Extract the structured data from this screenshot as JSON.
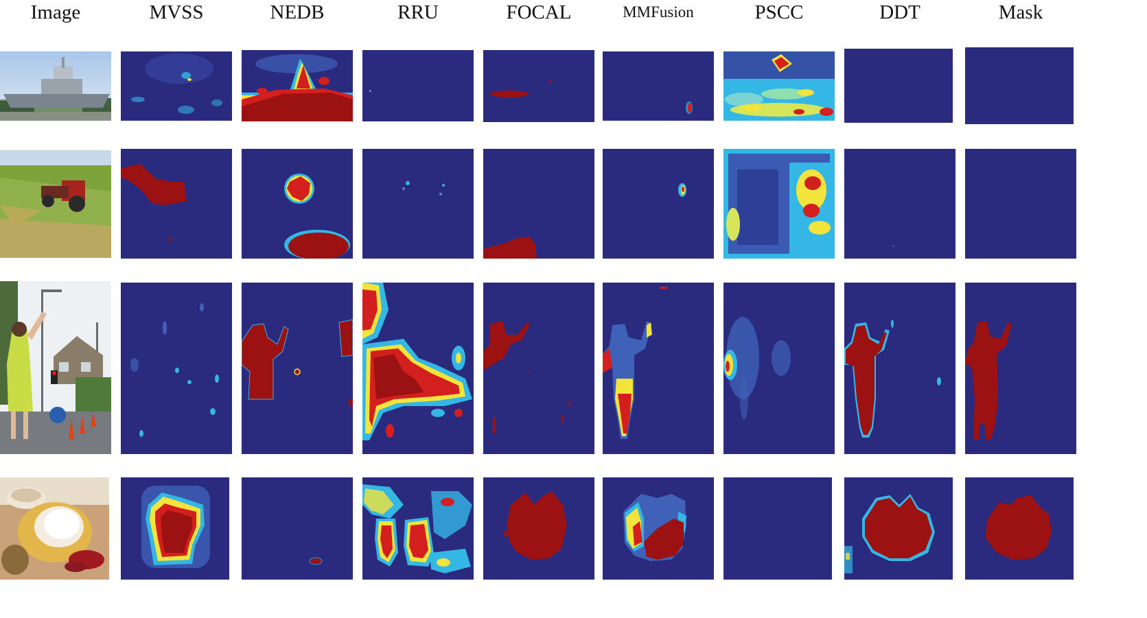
{
  "figure": {
    "columns": [
      "Image",
      "MVSS",
      "NEDB",
      "RRU",
      "FOCAL",
      "MMFusion",
      "PSCC",
      "DDT",
      "Mask"
    ],
    "rows": [
      {
        "subject": "aircraft-carrier",
        "cells": [
          "photo",
          "low-blobs",
          "red-bottom",
          "near-empty",
          "red-streak",
          "tiny-red-spot",
          "warm-noisy",
          "empty",
          "empty"
        ]
      },
      {
        "subject": "tractor-field",
        "cells": [
          "photo",
          "red-region-left",
          "red-blob-center-bottom",
          "tiny-spots",
          "red-bottom-left",
          "tiny-red-spot",
          "warm-right-side",
          "empty",
          "empty"
        ]
      },
      {
        "subject": "woman-street",
        "cells": [
          "photo",
          "faint-speckles",
          "red-silhouette",
          "red-scattered-large",
          "red-partial",
          "gradient-silhouette",
          "faint-left-blob",
          "red-silhouette-glow",
          "silhouette"
        ]
      },
      {
        "subject": "bread-cup",
        "cells": [
          "photo",
          "red-square-glow",
          "tiny-red-dot",
          "red-patches",
          "red-round-blob",
          "gradient-round-blob",
          "empty",
          "red-round-glow",
          "round-blob"
        ]
      }
    ]
  },
  "palette": {
    "background": "#2a2a7e",
    "hot": "#9c1212",
    "red": "#d41f1f",
    "yellow": "#f2e43a",
    "cyan": "#35b7e6",
    "light": "#5a86c9"
  }
}
